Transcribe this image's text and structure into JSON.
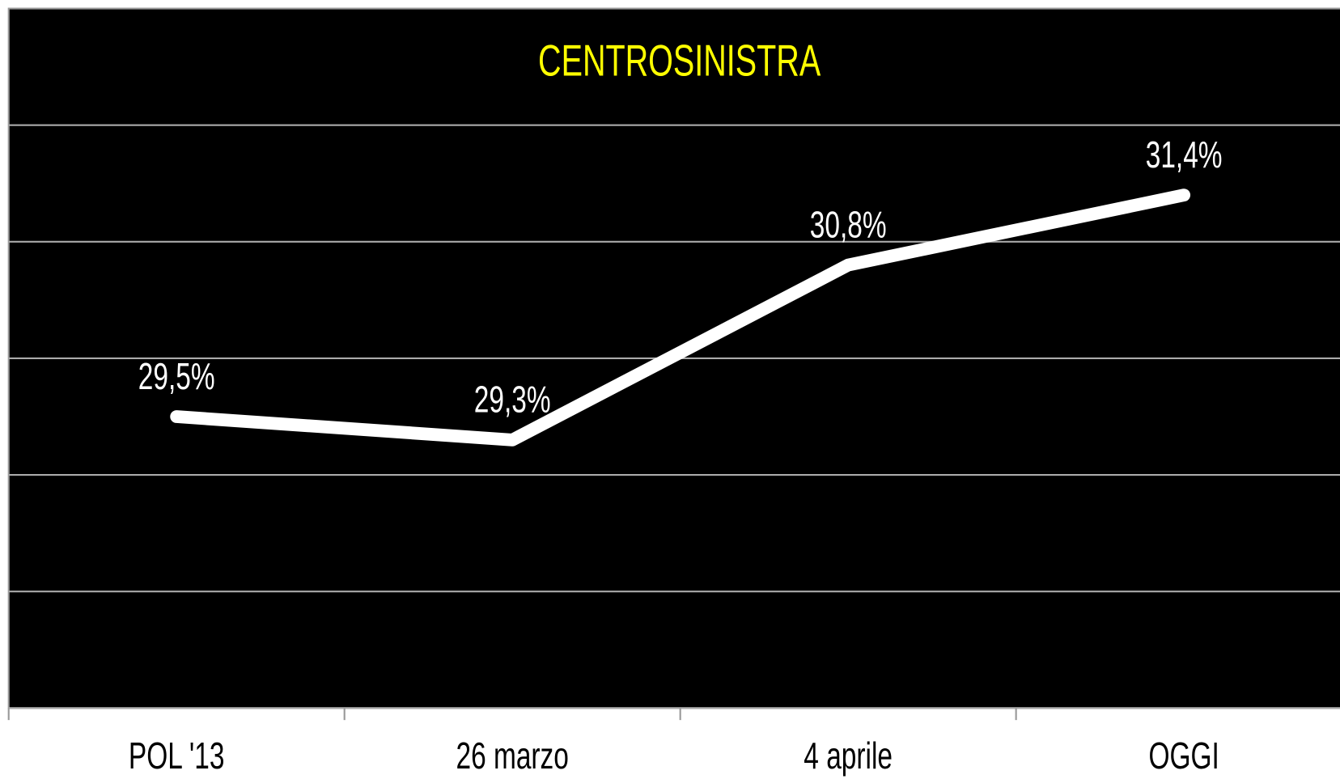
{
  "chart_data": {
    "type": "line",
    "title": "CENTROSINISTRA",
    "categories": [
      "POL '13",
      "26 marzo",
      "4 aprile",
      "OGGI"
    ],
    "series": [
      {
        "name": "CENTROSINISTRA",
        "color": "#ffffff",
        "values": [
          29.5,
          29.3,
          30.8,
          31.4
        ],
        "value_labels": [
          "29,5%",
          "29,3%",
          "30,8%",
          "31,4%"
        ]
      }
    ],
    "ylim": [
      27,
      33
    ],
    "yticks": [
      27,
      28,
      29,
      30,
      31,
      32
    ],
    "grid": true,
    "title_color": "#ffff00",
    "background": "#000000"
  }
}
